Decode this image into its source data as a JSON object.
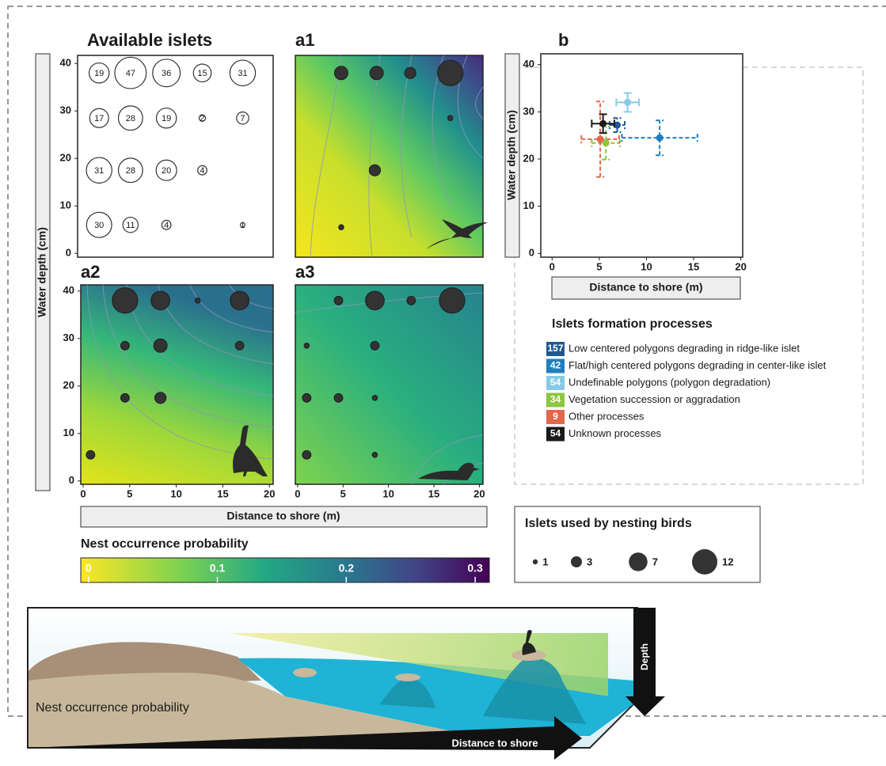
{
  "chart_data": [
    {
      "type": "bubble",
      "title": "Available islets",
      "labels_inside": true,
      "x": [
        1,
        4.5,
        8.5,
        12.5,
        17,
        1,
        4.5,
        8.5,
        12.5,
        17,
        1,
        4.5,
        8.5,
        12.5,
        1,
        4.5,
        8.5,
        17
      ],
      "y": [
        38,
        38,
        38,
        38,
        38,
        28.5,
        28.5,
        28.5,
        28.5,
        28.5,
        17.5,
        17.5,
        17.5,
        17.5,
        6,
        6,
        6,
        6
      ],
      "sizes": [
        19,
        47,
        36,
        15,
        31,
        17,
        28,
        19,
        2,
        7,
        31,
        28,
        20,
        4,
        30,
        11,
        4,
        1
      ],
      "xlim": [
        -1.4,
        20.4
      ],
      "ylim": [
        -0.8,
        41.7
      ],
      "yticks": [
        0,
        10,
        20,
        30,
        40
      ]
    },
    {
      "type": "bubble",
      "title": "a1",
      "x": [
        4.8,
        8.7,
        12.4,
        16.8,
        16.8,
        8.5,
        4.8
      ],
      "y": [
        38,
        38,
        38,
        38,
        28.5,
        17.5,
        5.5
      ],
      "sizes": [
        4,
        4,
        3,
        12,
        1,
        3,
        1
      ],
      "xlim": [
        -0.25,
        20.4
      ],
      "ylim": [
        -0.8,
        41.7
      ]
    },
    {
      "type": "bubble",
      "title": "a2",
      "x": [
        4.5,
        8.3,
        12.3,
        16.8,
        4.5,
        8.3,
        16.8,
        4.5,
        8.3,
        0.8
      ],
      "y": [
        38,
        38,
        38,
        38,
        28.5,
        28.5,
        28.5,
        17.5,
        17.5,
        5.5
      ],
      "sizes": [
        12,
        7,
        1,
        7,
        2,
        4,
        2,
        2,
        3,
        2
      ],
      "xlim": [
        -0.25,
        20.4
      ],
      "ylim": [
        -0.7,
        41.3
      ],
      "xticks": [
        0,
        5,
        10,
        15,
        20
      ],
      "yticks": [
        0,
        10,
        20,
        30,
        40
      ]
    },
    {
      "type": "bubble",
      "title": "a3",
      "x": [
        4.5,
        8.5,
        12.5,
        17,
        1,
        8.5,
        1,
        4.5,
        8.5,
        1,
        8.5
      ],
      "y": [
        38,
        38,
        38,
        38,
        28.5,
        28.5,
        17.5,
        17.5,
        17.5,
        5.5,
        5.5
      ],
      "sizes": [
        2,
        7,
        2,
        12,
        1,
        2,
        2,
        2,
        1,
        2,
        1
      ],
      "xlim": [
        -0.25,
        20.4
      ],
      "ylim": [
        -0.7,
        41.3
      ],
      "xticks": [
        0,
        5,
        10,
        15,
        20
      ]
    },
    {
      "type": "scatter",
      "title": "b",
      "xlabel": "Distance to shore (m)",
      "ylabel": "Water depth (cm)",
      "legend_title": "Islets formation processes",
      "xlim": [
        -1.2,
        20.2
      ],
      "ylim": [
        -0.8,
        42.3
      ],
      "xticks": [
        0,
        5,
        10,
        15,
        20
      ],
      "yticks": [
        0,
        10,
        20,
        30,
        40
      ],
      "series": [
        {
          "name": "Low centered polygons degrading in ridge-like islet",
          "n": 157,
          "color": "#1d5a94",
          "dashed": true,
          "x": [
            6.9
          ],
          "y": [
            27.2
          ],
          "xerr": [
            0.8
          ],
          "yerr": [
            1.5
          ]
        },
        {
          "name": "Flat/high centered polygons degrading in center-like islet",
          "n": 42,
          "color": "#1f7fc0",
          "dashed": true,
          "x": [
            11.4
          ],
          "y": [
            24.5
          ],
          "xerr": [
            4
          ],
          "yerr": [
            3.7
          ]
        },
        {
          "name": "Undefinable polygons (polygon degradation)",
          "n": 54,
          "color": "#86cbe6",
          "dashed": false,
          "x": [
            8
          ],
          "y": [
            32
          ],
          "xerr": [
            1.2
          ],
          "yerr": [
            2
          ]
        },
        {
          "name": "Vegetation succession or aggradation",
          "n": 34,
          "color": "#8cc63f",
          "dashed": true,
          "x": [
            5.7
          ],
          "y": [
            23.4
          ],
          "xerr": [
            1.5
          ],
          "yerr": [
            3.5
          ]
        },
        {
          "name": "Other processes",
          "n": 9,
          "color": "#e2674b",
          "dashed": true,
          "x": [
            5.1
          ],
          "y": [
            24.2
          ],
          "xerr": [
            2
          ],
          "yerr": [
            8
          ]
        },
        {
          "name": "Unknown processes",
          "n": 54,
          "color": "#1a1a1a",
          "dashed": false,
          "x": [
            5.4
          ],
          "y": [
            27.5
          ],
          "xerr": [
            1.2
          ],
          "yerr": [
            2
          ]
        }
      ]
    },
    {
      "type": "colorbar",
      "title": "Nest occurrence probability",
      "lim": [
        -0.006,
        0.311
      ],
      "ticks": [
        0,
        0.1,
        0.2,
        0.3
      ]
    }
  ],
  "shared_labels": {
    "y": "Water depth (cm)",
    "x": "Distance to shore (m)"
  },
  "size_legend": {
    "title": "Islets used by nesting birds",
    "sizes": [
      1,
      3,
      7,
      12
    ]
  },
  "illustration": {
    "label": "Nest occurrence probability",
    "x_arrow": "Distance to shore",
    "y_arrow": "Depth"
  }
}
